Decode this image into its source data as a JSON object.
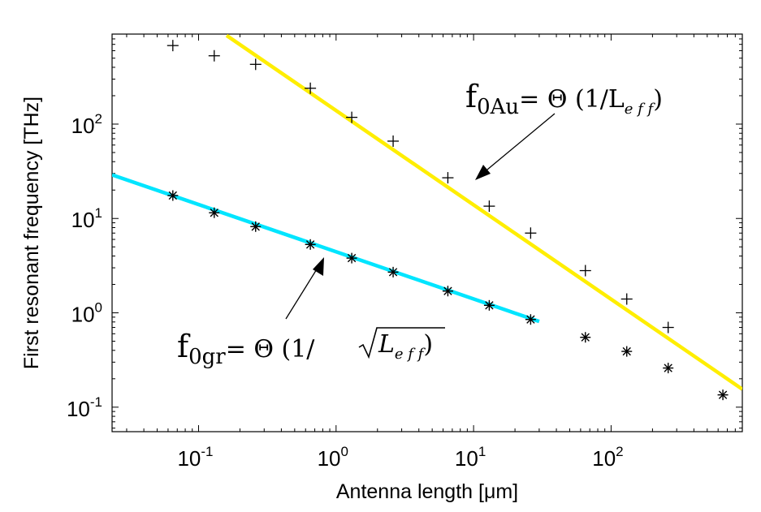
{
  "chart_data": {
    "type": "scatter",
    "title": "",
    "xlabel": "Antenna length [μm]",
    "ylabel": "First resonant frequency [THz]",
    "xscale": "log",
    "yscale": "log",
    "xlim": [
      0.0235,
      900
    ],
    "ylim": [
      0.055,
      900
    ],
    "grid": false,
    "legend": "none",
    "x_ticks": [
      {
        "base": "10",
        "exp": "-1"
      },
      {
        "base": "10",
        "exp": "0"
      },
      {
        "base": "10",
        "exp": "1"
      },
      {
        "base": "10",
        "exp": "2"
      }
    ],
    "y_ticks": [
      {
        "base": "10",
        "exp": "-1"
      },
      {
        "base": "10",
        "exp": "0"
      },
      {
        "base": "10",
        "exp": "1"
      },
      {
        "base": "10",
        "exp": "2"
      }
    ],
    "series": [
      {
        "marker": "+",
        "color": "#000000",
        "points": [
          [
            0.065,
            680
          ],
          [
            0.13,
            530
          ],
          [
            0.26,
            430
          ],
          [
            0.65,
            240
          ],
          [
            1.3,
            118
          ],
          [
            2.6,
            66
          ],
          [
            6.5,
            27
          ],
          [
            13,
            13.5
          ],
          [
            26,
            7
          ],
          [
            65,
            2.8
          ],
          [
            130,
            1.4
          ],
          [
            260,
            0.7
          ]
        ]
      },
      {
        "marker": "*",
        "color": "#000000",
        "points": [
          [
            0.065,
            17.5
          ],
          [
            0.13,
            11.5
          ],
          [
            0.26,
            8.2
          ],
          [
            0.65,
            5.3
          ],
          [
            1.3,
            3.8
          ],
          [
            2.6,
            2.7
          ],
          [
            6.5,
            1.7
          ],
          [
            13,
            1.2
          ],
          [
            26,
            0.85
          ],
          [
            65,
            0.55
          ],
          [
            130,
            0.39
          ],
          [
            260,
            0.26
          ],
          [
            650,
            0.135
          ]
        ]
      },
      {
        "type": "line",
        "color": "#ffee00",
        "points": [
          [
            0.16,
            870
          ],
          [
            900,
            0.155
          ]
        ]
      },
      {
        "type": "line",
        "color": "#00e5ff",
        "points": [
          [
            0.0235,
            29
          ],
          [
            30,
            0.81
          ]
        ]
      }
    ],
    "annotations": [
      {
        "main": "f",
        "sub": "0Au",
        "text": "= Θ (1/L",
        "text_sub": "e f f",
        "close": ")"
      },
      {
        "main": "f",
        "sub": "0gr",
        "text": "= Θ (1/",
        "radicand": "L",
        "text_sub": "e f f",
        "close": ")"
      }
    ]
  }
}
